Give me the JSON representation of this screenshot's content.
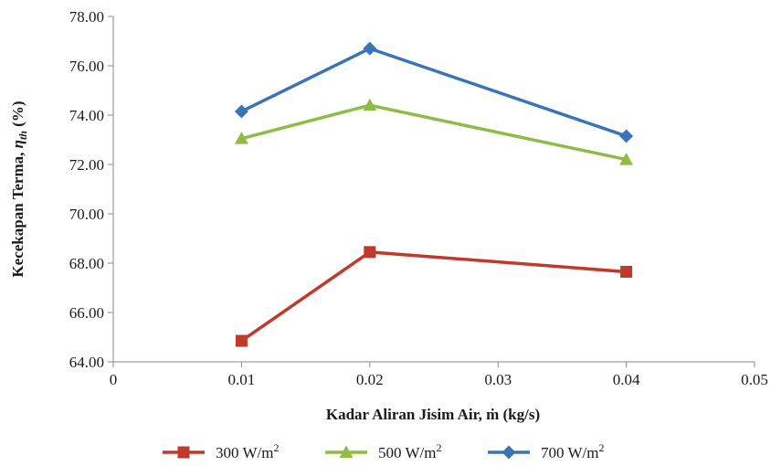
{
  "chart_data": {
    "type": "line",
    "xlabel": "Kadar Aliran Jisim Air, ṁ (kg/s)",
    "ylabel_parts": {
      "main": "Kecekapan Terma, ",
      "eta": "η",
      "sub": "th",
      "unit": " (%)"
    },
    "x_ticks": [
      "0",
      "0.01",
      "0.02",
      "0.03",
      "0.04",
      "0.05"
    ],
    "x_tick_values": [
      0,
      0.01,
      0.02,
      0.03,
      0.04,
      0.05
    ],
    "y_ticks": [
      "64.00",
      "66.00",
      "68.00",
      "70.00",
      "72.00",
      "74.00",
      "76.00",
      "78.00"
    ],
    "y_tick_values": [
      64,
      66,
      68,
      70,
      72,
      74,
      76,
      78
    ],
    "xlim": [
      0,
      0.05
    ],
    "ylim": [
      64,
      78
    ],
    "grid": false,
    "legend_position": "bottom",
    "series": [
      {
        "name": "300 W/m",
        "sup": "2",
        "color": "#c0392b",
        "marker": "square",
        "x": [
          0.01,
          0.02,
          0.04
        ],
        "values": [
          64.85,
          68.45,
          67.65
        ]
      },
      {
        "name": "500 W/m",
        "sup": "2",
        "color": "#8fbc45",
        "marker": "triangle",
        "x": [
          0.01,
          0.02,
          0.04
        ],
        "values": [
          73.05,
          74.4,
          72.2
        ]
      },
      {
        "name": "700 W/m",
        "sup": "2",
        "color": "#3a74b7",
        "marker": "diamond",
        "x": [
          0.01,
          0.02,
          0.04
        ],
        "values": [
          74.15,
          76.7,
          73.15
        ]
      }
    ]
  }
}
